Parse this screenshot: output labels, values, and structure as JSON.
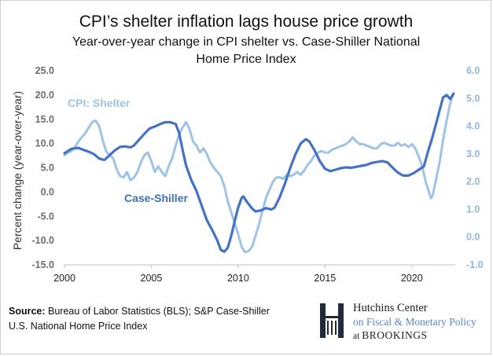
{
  "chart_data": {
    "type": "line",
    "title": "CPI’s shelter inflation lags house price growth",
    "subtitle_line1": "Year-over-year change in CPI shelter vs. Case-Shiller National",
    "subtitle_line2": "Home Price Index",
    "ylabel": "Percent change (year-over-year)",
    "ylim_left": [
      -15,
      25
    ],
    "ylim_right": [
      -1,
      6
    ],
    "xlim": [
      2000,
      2022.5
    ],
    "x_ticks": [
      "2000",
      "2005",
      "2010",
      "2015",
      "2020"
    ],
    "x_tick_values": [
      2000,
      2005,
      2010,
      2015,
      2020
    ],
    "left_ticks": [
      "25.0",
      "20.0",
      "15.0",
      "10.0",
      "5.0",
      "0.0",
      "-5.0",
      "-10.0",
      "-15.0"
    ],
    "left_tick_values": [
      25,
      20,
      15,
      10,
      5,
      0,
      -5,
      -10,
      -15
    ],
    "right_ticks": [
      "6.0",
      "5.0",
      "4.0",
      "3.0",
      "2.0",
      "1.0",
      "0.0",
      "-1.0"
    ],
    "right_tick_values": [
      6,
      5,
      4,
      3,
      2,
      1,
      0,
      -1
    ],
    "series": [
      {
        "name": "Case-Shiller",
        "label": "Case-Shiller",
        "axis": "left",
        "color": "#4472c4",
        "points": [
          [
            2000.0,
            8.0
          ],
          [
            2000.4,
            8.9
          ],
          [
            2000.8,
            9.1
          ],
          [
            2001.1,
            8.7
          ],
          [
            2001.4,
            8.3
          ],
          [
            2001.7,
            7.8
          ],
          [
            2002.0,
            6.9
          ],
          [
            2002.3,
            6.6
          ],
          [
            2002.6,
            7.6
          ],
          [
            2002.9,
            8.6
          ],
          [
            2003.2,
            9.3
          ],
          [
            2003.5,
            9.4
          ],
          [
            2003.8,
            9.2
          ],
          [
            2004.0,
            9.6
          ],
          [
            2004.3,
            10.8
          ],
          [
            2004.6,
            12.0
          ],
          [
            2004.9,
            13.1
          ],
          [
            2005.2,
            13.5
          ],
          [
            2005.5,
            14.0
          ],
          [
            2005.8,
            14.4
          ],
          [
            2006.1,
            14.4
          ],
          [
            2006.4,
            14.0
          ],
          [
            2006.6,
            12.2
          ],
          [
            2006.8,
            8.7
          ],
          [
            2007.0,
            5.5
          ],
          [
            2007.3,
            2.5
          ],
          [
            2007.6,
            0.2
          ],
          [
            2007.9,
            -2.8
          ],
          [
            2008.2,
            -5.8
          ],
          [
            2008.5,
            -7.8
          ],
          [
            2008.8,
            -10.0
          ],
          [
            2009.0,
            -11.9
          ],
          [
            2009.2,
            -12.3
          ],
          [
            2009.4,
            -11.5
          ],
          [
            2009.6,
            -9.0
          ],
          [
            2009.8,
            -6.0
          ],
          [
            2010.0,
            -3.2
          ],
          [
            2010.2,
            -1.2
          ],
          [
            2010.3,
            -0.9
          ],
          [
            2010.5,
            -2.0
          ],
          [
            2010.8,
            -3.4
          ],
          [
            2011.0,
            -4.0
          ],
          [
            2011.3,
            -3.8
          ],
          [
            2011.6,
            -3.3
          ],
          [
            2011.9,
            -3.6
          ],
          [
            2012.1,
            -3.2
          ],
          [
            2012.4,
            -1.0
          ],
          [
            2012.7,
            1.8
          ],
          [
            2013.0,
            5.0
          ],
          [
            2013.3,
            7.8
          ],
          [
            2013.6,
            10.0
          ],
          [
            2013.9,
            10.9
          ],
          [
            2014.1,
            10.4
          ],
          [
            2014.4,
            8.6
          ],
          [
            2014.7,
            6.4
          ],
          [
            2015.0,
            4.8
          ],
          [
            2015.3,
            4.3
          ],
          [
            2015.6,
            4.6
          ],
          [
            2015.9,
            4.9
          ],
          [
            2016.2,
            5.1
          ],
          [
            2016.5,
            5.0
          ],
          [
            2016.8,
            5.2
          ],
          [
            2017.1,
            5.4
          ],
          [
            2017.4,
            5.6
          ],
          [
            2017.7,
            6.0
          ],
          [
            2018.0,
            6.2
          ],
          [
            2018.3,
            6.4
          ],
          [
            2018.6,
            6.1
          ],
          [
            2018.9,
            5.0
          ],
          [
            2019.2,
            4.0
          ],
          [
            2019.5,
            3.4
          ],
          [
            2019.8,
            3.4
          ],
          [
            2020.1,
            3.9
          ],
          [
            2020.4,
            4.6
          ],
          [
            2020.7,
            5.3
          ],
          [
            2020.9,
            8.0
          ],
          [
            2021.2,
            11.5
          ],
          [
            2021.5,
            15.5
          ],
          [
            2021.8,
            19.5
          ],
          [
            2022.0,
            20.0
          ],
          [
            2022.2,
            19.2
          ],
          [
            2022.4,
            20.2
          ]
        ]
      },
      {
        "name": "CPI: Shelter",
        "label": "CPI: Shelter",
        "axis": "right",
        "color": "#9dc3e6",
        "points": [
          [
            2000.0,
            2.95
          ],
          [
            2000.2,
            3.05
          ],
          [
            2000.4,
            3.1
          ],
          [
            2000.6,
            3.25
          ],
          [
            2000.8,
            3.45
          ],
          [
            2001.0,
            3.6
          ],
          [
            2001.2,
            3.75
          ],
          [
            2001.4,
            3.95
          ],
          [
            2001.6,
            4.15
          ],
          [
            2001.8,
            4.2
          ],
          [
            2002.0,
            4.0
          ],
          [
            2002.2,
            3.5
          ],
          [
            2002.4,
            3.1
          ],
          [
            2002.6,
            2.95
          ],
          [
            2002.8,
            2.85
          ],
          [
            2003.0,
            2.45
          ],
          [
            2003.2,
            2.2
          ],
          [
            2003.4,
            2.15
          ],
          [
            2003.6,
            2.35
          ],
          [
            2003.8,
            2.05
          ],
          [
            2004.0,
            2.15
          ],
          [
            2004.2,
            2.35
          ],
          [
            2004.4,
            2.7
          ],
          [
            2004.6,
            2.95
          ],
          [
            2004.8,
            3.05
          ],
          [
            2005.0,
            2.75
          ],
          [
            2005.2,
            2.35
          ],
          [
            2005.4,
            2.55
          ],
          [
            2005.6,
            2.35
          ],
          [
            2005.8,
            2.2
          ],
          [
            2006.0,
            2.55
          ],
          [
            2006.2,
            2.85
          ],
          [
            2006.4,
            3.3
          ],
          [
            2006.6,
            3.7
          ],
          [
            2006.8,
            3.95
          ],
          [
            2007.0,
            4.15
          ],
          [
            2007.2,
            3.9
          ],
          [
            2007.4,
            3.45
          ],
          [
            2007.6,
            3.3
          ],
          [
            2007.8,
            3.05
          ],
          [
            2008.0,
            3.2
          ],
          [
            2008.2,
            3.0
          ],
          [
            2008.4,
            2.7
          ],
          [
            2008.6,
            2.5
          ],
          [
            2008.8,
            2.35
          ],
          [
            2009.0,
            2.2
          ],
          [
            2009.2,
            1.85
          ],
          [
            2009.4,
            1.3
          ],
          [
            2009.6,
            0.9
          ],
          [
            2009.8,
            0.5
          ],
          [
            2010.0,
            0.1
          ],
          [
            2010.2,
            -0.35
          ],
          [
            2010.4,
            -0.55
          ],
          [
            2010.6,
            -0.5
          ],
          [
            2010.8,
            -0.35
          ],
          [
            2011.0,
            0.05
          ],
          [
            2011.2,
            0.45
          ],
          [
            2011.4,
            0.95
          ],
          [
            2011.6,
            1.4
          ],
          [
            2011.8,
            1.7
          ],
          [
            2012.0,
            2.0
          ],
          [
            2012.2,
            2.15
          ],
          [
            2012.4,
            2.15
          ],
          [
            2012.6,
            2.1
          ],
          [
            2012.8,
            2.25
          ],
          [
            2013.0,
            2.2
          ],
          [
            2013.2,
            2.25
          ],
          [
            2013.4,
            2.35
          ],
          [
            2013.6,
            2.25
          ],
          [
            2013.8,
            2.4
          ],
          [
            2014.0,
            2.6
          ],
          [
            2014.2,
            2.75
          ],
          [
            2014.4,
            2.95
          ],
          [
            2014.6,
            3.05
          ],
          [
            2014.8,
            3.1
          ],
          [
            2015.0,
            3.05
          ],
          [
            2015.2,
            3.05
          ],
          [
            2015.4,
            3.15
          ],
          [
            2015.6,
            3.2
          ],
          [
            2015.8,
            3.25
          ],
          [
            2016.0,
            3.3
          ],
          [
            2016.2,
            3.35
          ],
          [
            2016.4,
            3.45
          ],
          [
            2016.6,
            3.6
          ],
          [
            2016.8,
            3.45
          ],
          [
            2017.0,
            3.35
          ],
          [
            2017.2,
            3.35
          ],
          [
            2017.4,
            3.3
          ],
          [
            2017.6,
            3.25
          ],
          [
            2017.8,
            3.2
          ],
          [
            2018.0,
            3.2
          ],
          [
            2018.2,
            3.35
          ],
          [
            2018.4,
            3.4
          ],
          [
            2018.6,
            3.35
          ],
          [
            2018.8,
            3.3
          ],
          [
            2019.0,
            3.3
          ],
          [
            2019.2,
            3.4
          ],
          [
            2019.4,
            3.3
          ],
          [
            2019.6,
            3.35
          ],
          [
            2019.8,
            3.25
          ],
          [
            2020.0,
            3.35
          ],
          [
            2020.2,
            3.2
          ],
          [
            2020.4,
            2.9
          ],
          [
            2020.6,
            2.55
          ],
          [
            2020.8,
            2.0
          ],
          [
            2021.0,
            1.6
          ],
          [
            2021.1,
            1.4
          ],
          [
            2021.2,
            1.5
          ],
          [
            2021.4,
            2.1
          ],
          [
            2021.6,
            2.7
          ],
          [
            2021.8,
            3.5
          ],
          [
            2022.0,
            4.2
          ],
          [
            2022.2,
            4.8
          ],
          [
            2022.4,
            5.2
          ]
        ]
      }
    ]
  },
  "footer": {
    "source_label": "Source:",
    "source_text": " Bureau of Labor Statistics (BLS); S&P Case-Shiller",
    "source_text2": "U.S. National Home Price Index"
  },
  "logo": {
    "line1": "Hutchins Center",
    "line2": "on Fiscal & Monetary Policy",
    "line3_prefix": "at ",
    "line3_brand": "BROOKINGS"
  },
  "colors": {
    "case_shiller": "#4472c4",
    "cpi_shelter": "#9dc3e6",
    "left_tick": "#6d6d6d",
    "right_tick": "#8fb9de"
  }
}
